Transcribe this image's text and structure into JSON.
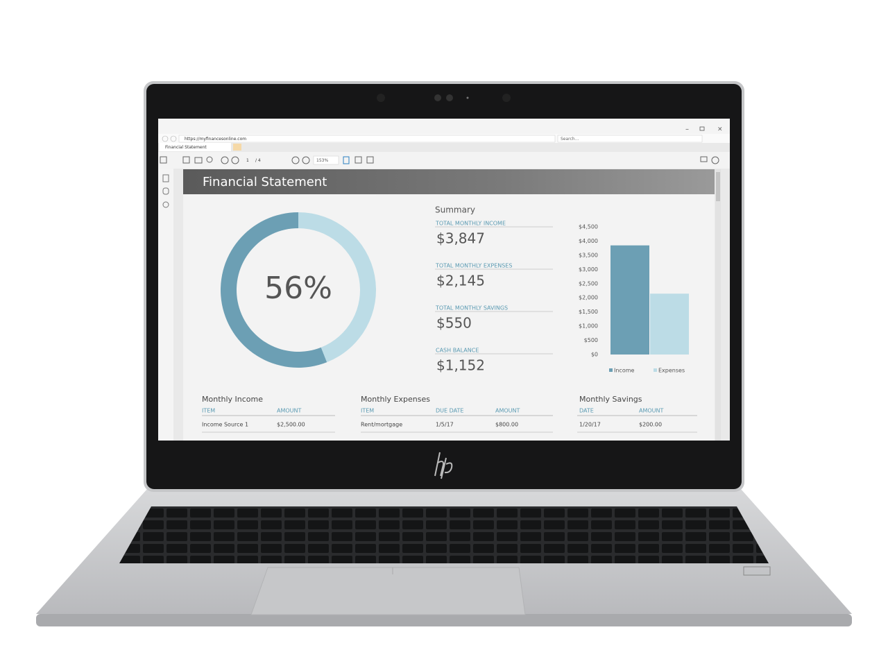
{
  "browser": {
    "url": "https://myfinancesonline.com",
    "search": "Search...",
    "tab": "Financial Statement",
    "page": "1",
    "page_count": "/ 4",
    "zoom": "153%"
  },
  "document": {
    "title": "Financial Statement",
    "summary": {
      "title": "Summary",
      "items": [
        {
          "label": "TOTAL MONTHLY INCOME",
          "value": "$3,847"
        },
        {
          "label": "TOTAL MONTHLY EXPENSES",
          "value": "$2,145"
        },
        {
          "label": "TOTAL MONTHLY SAVINGS",
          "value": "$550"
        },
        {
          "label": "CASH BALANCE",
          "value": "$1,152"
        }
      ]
    },
    "tables": [
      {
        "title": "Monthly Income",
        "columns": [
          "ITEM",
          "AMOUNT"
        ],
        "rows": [
          [
            "Income Source 1",
            "$2,500.00"
          ]
        ]
      },
      {
        "title": "Monthly Expenses",
        "columns": [
          "ITEM",
          "DUE DATE",
          "AMOUNT"
        ],
        "rows": [
          [
            "Rent/mortgage",
            "1/5/17",
            "$800.00"
          ]
        ]
      },
      {
        "title": "Monthly Savings",
        "columns": [
          "DATE",
          "AMOUNT"
        ],
        "rows": [
          [
            "1/20/17",
            "$200.00"
          ]
        ]
      }
    ]
  },
  "chart_data": [
    {
      "type": "pie",
      "donut": true,
      "values": [
        56,
        44
      ],
      "colors": [
        "#6c9fb4",
        "#bcdce6"
      ],
      "center_label": "56%"
    },
    {
      "type": "bar",
      "categories": [
        null
      ],
      "series": [
        {
          "name": "Income",
          "color": "#6c9fb4",
          "values": [
            3847
          ]
        },
        {
          "name": "Expenses",
          "color": "#bcdce6",
          "values": [
            2145
          ]
        }
      ],
      "ylim": [
        0,
        4500
      ],
      "yticks": [
        {
          "value": 0,
          "label": "$0"
        },
        {
          "value": 500,
          "label": "$500"
        },
        {
          "value": 1000,
          "label": "$1,000"
        },
        {
          "value": 1500,
          "label": "$1,500"
        },
        {
          "value": 2000,
          "label": "$2,000"
        },
        {
          "value": 2500,
          "label": "$2,500"
        },
        {
          "value": 3000,
          "label": "$3,000"
        },
        {
          "value": 3500,
          "label": "$3,500"
        },
        {
          "value": 4000,
          "label": "$4,000"
        },
        {
          "value": 4500,
          "label": "$4,500"
        }
      ],
      "legend": "bottom"
    }
  ]
}
